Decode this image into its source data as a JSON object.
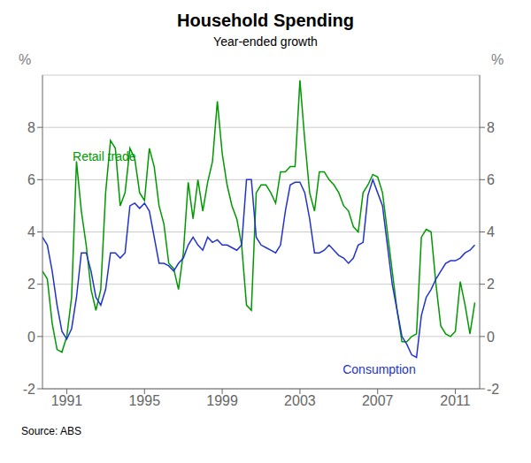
{
  "chart_data": {
    "type": "line",
    "title": "Household Spending",
    "subtitle": "Year-ended growth",
    "source": "Source: ABS",
    "ylabel": "%",
    "y2label": "%",
    "grid": true,
    "xlim": [
      1989.75,
      2012.25
    ],
    "xticks": [
      1991,
      1995,
      1999,
      2003,
      2007,
      2011
    ],
    "ylim": [
      -2,
      10
    ],
    "yticks": [
      -2,
      0,
      2,
      4,
      6,
      8
    ],
    "y2lim": [
      -2,
      10
    ],
    "y2ticks": [
      -2,
      0,
      2,
      4,
      6,
      8
    ],
    "x": [
      1989.75,
      1990.0,
      1990.25,
      1990.5,
      1990.75,
      1991.0,
      1991.25,
      1991.5,
      1991.75,
      1992.0,
      1992.25,
      1992.5,
      1992.75,
      1993.0,
      1993.25,
      1993.5,
      1993.75,
      1994.0,
      1994.25,
      1994.5,
      1994.75,
      1995.0,
      1995.25,
      1995.5,
      1995.75,
      1996.0,
      1996.25,
      1996.5,
      1996.75,
      1997.0,
      1997.25,
      1997.5,
      1997.75,
      1998.0,
      1998.25,
      1998.5,
      1998.75,
      1999.0,
      1999.25,
      1999.5,
      1999.75,
      2000.0,
      2000.25,
      2000.5,
      2000.75,
      2001.0,
      2001.25,
      2001.5,
      2001.75,
      2002.0,
      2002.25,
      2002.5,
      2002.75,
      2003.0,
      2003.25,
      2003.5,
      2003.75,
      2004.0,
      2004.25,
      2004.5,
      2004.75,
      2005.0,
      2005.25,
      2005.5,
      2005.75,
      2006.0,
      2006.25,
      2006.5,
      2006.75,
      2007.0,
      2007.25,
      2007.5,
      2007.75,
      2008.0,
      2008.25,
      2008.5,
      2008.75,
      2009.0,
      2009.25,
      2009.5,
      2009.75,
      2010.0,
      2010.25,
      2010.5,
      2010.75,
      2011.0,
      2011.25,
      2011.5,
      2011.75,
      2012.0
    ],
    "series": [
      {
        "color": "#009900",
        "values": [
          2.5,
          2.2,
          0.5,
          -0.5,
          -0.6,
          0.0,
          1.5,
          6.7,
          4.8,
          3.5,
          1.8,
          1.0,
          1.8,
          5.5,
          7.5,
          7.2,
          5.0,
          5.5,
          7.2,
          6.8,
          5.5,
          5.2,
          7.2,
          6.5,
          5.0,
          4.3,
          2.8,
          2.6,
          1.8,
          3.2,
          5.9,
          4.5,
          6.0,
          4.8,
          5.9,
          6.7,
          9.0,
          7.0,
          5.8,
          5.0,
          4.5,
          3.5,
          1.2,
          1.0,
          5.5,
          5.8,
          5.8,
          5.5,
          5.1,
          6.3,
          6.3,
          6.5,
          6.5,
          9.8,
          7.5,
          5.5,
          4.8,
          6.3,
          6.3,
          6.0,
          5.8,
          5.5,
          5.0,
          4.8,
          4.2,
          4.0,
          5.5,
          5.8,
          6.2,
          6.1,
          5.5,
          4.0,
          2.5,
          1.0,
          -0.2,
          -0.2,
          0.0,
          0.1,
          3.8,
          4.1,
          4.0,
          2.0,
          0.4,
          0.1,
          0.0,
          0.2,
          2.1,
          1.2,
          0.1,
          1.3
        ]
      },
      {
        "color": "#2233CC",
        "values": [
          3.8,
          3.5,
          2.5,
          1.2,
          0.2,
          -0.1,
          0.3,
          1.5,
          3.2,
          3.2,
          2.5,
          1.5,
          1.2,
          1.8,
          3.2,
          3.2,
          3.0,
          3.2,
          5.0,
          5.1,
          4.9,
          5.1,
          4.8,
          3.8,
          2.8,
          2.8,
          2.7,
          2.5,
          2.8,
          3.0,
          3.5,
          3.8,
          3.5,
          3.3,
          3.8,
          3.6,
          3.7,
          3.5,
          3.5,
          3.4,
          3.3,
          3.5,
          6.0,
          6.0,
          3.8,
          3.5,
          3.4,
          3.3,
          3.2,
          3.5,
          4.8,
          5.8,
          5.9,
          5.9,
          5.5,
          4.5,
          3.2,
          3.2,
          3.3,
          3.5,
          3.3,
          3.1,
          3.0,
          2.8,
          3.0,
          3.5,
          3.6,
          5.4,
          6.0,
          5.5,
          5.0,
          3.5,
          2.0,
          1.0,
          0.0,
          -0.3,
          -0.7,
          -0.8,
          0.8,
          1.5,
          1.8,
          2.2,
          2.5,
          2.8,
          2.9,
          2.9,
          3.0,
          3.2,
          3.3,
          3.5
        ]
      }
    ],
    "annotations": [
      {
        "text": "Retail trade",
        "x": 1991.3,
        "y": 6.9,
        "color": "#009900"
      },
      {
        "text": "Consumption",
        "x": 2005.2,
        "y": -1.25,
        "color": "#2233CC"
      }
    ]
  }
}
